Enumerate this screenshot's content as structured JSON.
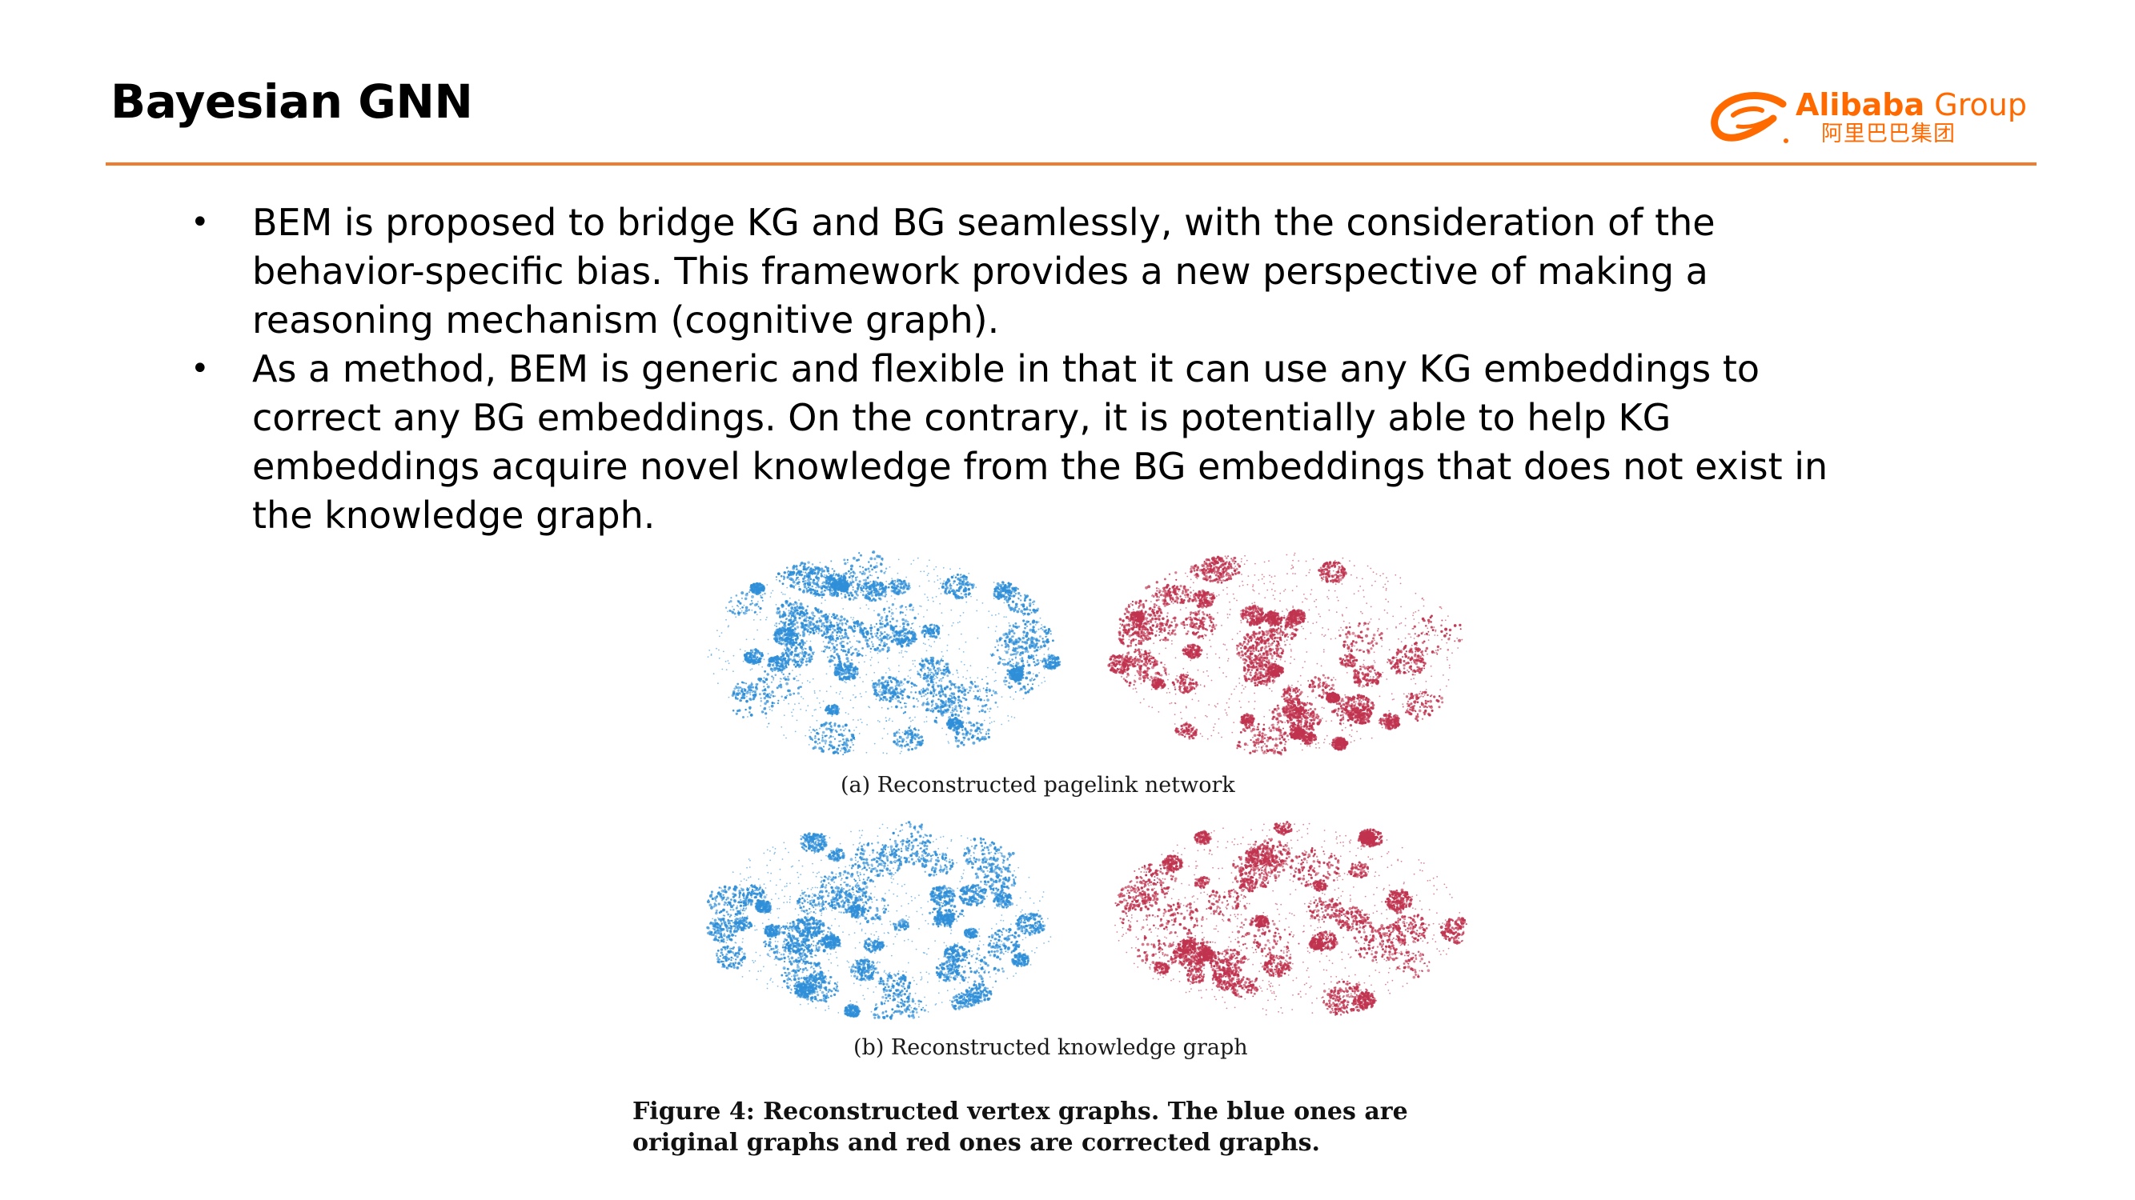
{
  "slide": {
    "title": "Bayesian GNN"
  },
  "logo": {
    "brand_bold": "Alibaba",
    "brand_light": "Group",
    "chinese": "阿里巴巴集团",
    "accent_color": "#ff6a00"
  },
  "rule_color": "#ed7d31",
  "bullets": [
    {
      "marker": "•",
      "lines": [
        "BEM is proposed to bridge KG and BG seamlessly, with the consideration of the",
        "behavior-specific bias. This framework provides a new perspective of making a",
        "reasoning mechanism (cognitive graph)."
      ]
    },
    {
      "marker": "•",
      "lines": [
        "As a method, BEM is generic and flexible in that it can use any KG embeddings to",
        "correct any BG embeddings. On the contrary, it is potentially able to help KG",
        "embeddings acquire novel knowledge from the BG embeddings that does not exist in",
        "the knowledge graph."
      ]
    }
  ],
  "figure": {
    "subcaption_a": "(a) Reconstructed pagelink network",
    "subcaption_b": "(b) Reconstructed knowledge graph",
    "caption_lines": [
      "Figure 4: Reconstructed vertex graphs. The blue ones are",
      "original graphs and red ones are corrected graphs."
    ],
    "colors": {
      "original": "#2f8fd8",
      "corrected": "#c0334f"
    }
  }
}
